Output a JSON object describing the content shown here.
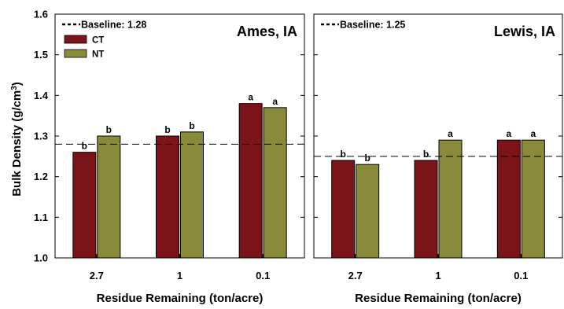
{
  "chart_data": {
    "type": "bar",
    "ylabel": "Bulk Density (g/cm",
    "ylabel_superscript": "3",
    "ylabel_suffix": ")",
    "xlabel": "Residue Remaining (ton/acre)",
    "ylim": [
      1.0,
      1.6
    ],
    "yticks": [
      "1.0",
      "1.1",
      "1.2",
      "1.3",
      "1.4",
      "1.5",
      "1.6"
    ],
    "categories": [
      "2.7",
      "1",
      "0.1"
    ],
    "legend": {
      "items": [
        {
          "name": "CT",
          "color": "#7b1419"
        },
        {
          "name": "NT",
          "color": "#8a8b3a"
        }
      ],
      "placement": "top-left"
    },
    "grid": false,
    "panels": [
      {
        "title": "Ames, IA",
        "baseline_label": "Baseline: 1.28",
        "baseline": 1.28,
        "series": [
          {
            "name": "CT",
            "values": [
              1.26,
              1.3,
              1.38
            ],
            "labels": [
              "b",
              "b",
              "a"
            ]
          },
          {
            "name": "NT",
            "values": [
              1.3,
              1.31,
              1.37
            ],
            "labels": [
              "b",
              "b",
              "a"
            ]
          }
        ]
      },
      {
        "title": "Lewis, IA",
        "baseline_label": "Baseline: 1.25",
        "baseline": 1.25,
        "series": [
          {
            "name": "CT",
            "values": [
              1.24,
              1.24,
              1.29
            ],
            "labels": [
              "b",
              "b",
              "a"
            ]
          },
          {
            "name": "NT",
            "values": [
              1.23,
              1.29,
              1.29
            ],
            "labels": [
              "b",
              "a",
              "a"
            ]
          }
        ]
      }
    ]
  }
}
